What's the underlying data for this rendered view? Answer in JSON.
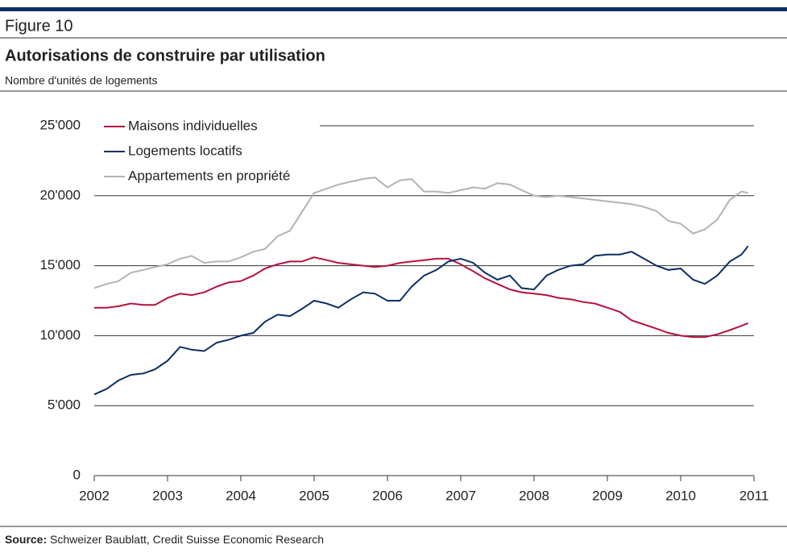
{
  "figure_label": "Figure 10",
  "source_label": "Source:",
  "source_text": "Schweizer Baublatt, Credit Suisse Economic Research",
  "chart_data": {
    "type": "line",
    "title": "Autorisations de construire par utilisation",
    "subtitle": "Nombre d'unités de logements",
    "x": [
      2002.0,
      2002.17,
      2002.33,
      2002.5,
      2002.67,
      2002.83,
      2003.0,
      2003.17,
      2003.33,
      2003.5,
      2003.67,
      2003.83,
      2004.0,
      2004.17,
      2004.33,
      2004.5,
      2004.67,
      2004.83,
      2005.0,
      2005.17,
      2005.33,
      2005.5,
      2005.67,
      2005.83,
      2006.0,
      2006.17,
      2006.33,
      2006.5,
      2006.67,
      2006.83,
      2007.0,
      2007.17,
      2007.33,
      2007.5,
      2007.67,
      2007.83,
      2008.0,
      2008.17,
      2008.33,
      2008.5,
      2008.67,
      2008.83,
      2009.0,
      2009.17,
      2009.33,
      2009.5,
      2009.67,
      2009.83,
      2010.0,
      2010.17,
      2010.33,
      2010.5,
      2010.67,
      2010.83,
      2010.92
    ],
    "series": [
      {
        "name": "Maisons individuelles",
        "color": "#b5123e",
        "values": [
          12000,
          12000,
          12100,
          12300,
          12200,
          12200,
          12700,
          13000,
          12900,
          13100,
          13500,
          13800,
          13900,
          14300,
          14800,
          15100,
          15300,
          15300,
          15600,
          15400,
          15200,
          15100,
          15000,
          14900,
          15000,
          15200,
          15300,
          15400,
          15500,
          15500,
          15100,
          14600,
          14100,
          13700,
          13300,
          13100,
          13000,
          12900,
          12700,
          12600,
          12400,
          12300,
          12000,
          11700,
          11100,
          10800,
          10500,
          10200,
          10000,
          9900,
          9900,
          10100,
          10400,
          10700,
          10900
        ]
      },
      {
        "name": "Logements locatifs",
        "color": "#0c2f63",
        "values": [
          5800,
          6200,
          6800,
          7200,
          7300,
          7600,
          8200,
          9200,
          9000,
          8900,
          9500,
          9700,
          10000,
          10200,
          11000,
          11500,
          11400,
          11900,
          12500,
          12300,
          12000,
          12600,
          13100,
          13000,
          12500,
          12500,
          13500,
          14300,
          14700,
          15300,
          15500,
          15200,
          14500,
          14000,
          14300,
          13400,
          13300,
          14300,
          14700,
          15000,
          15100,
          15700,
          15800,
          15800,
          16000,
          15500,
          15000,
          14700,
          14800,
          14000,
          13700,
          14300,
          15300,
          15800,
          16400
        ]
      },
      {
        "name": "Appartements en propriété",
        "color": "#b3b3b3",
        "values": [
          13400,
          13700,
          13900,
          14500,
          14700,
          14900,
          15100,
          15500,
          15700,
          15200,
          15300,
          15300,
          15600,
          16000,
          16200,
          17100,
          17500,
          18800,
          20200,
          20500,
          20800,
          21000,
          21200,
          21300,
          20600,
          21100,
          21200,
          20300,
          20300,
          20200,
          20400,
          20600,
          20500,
          20900,
          20800,
          20400,
          20000,
          19900,
          20000,
          19900,
          19800,
          19700,
          19600,
          19500,
          19400,
          19200,
          18900,
          18200,
          18000,
          17300,
          17600,
          18300,
          19700,
          20300,
          20200
        ]
      }
    ],
    "xlim": [
      2002,
      2011
    ],
    "xticks": [
      2002,
      2003,
      2004,
      2005,
      2006,
      2007,
      2008,
      2009,
      2010,
      2011
    ],
    "ylim": [
      0,
      25000
    ],
    "yticks": [
      0,
      {
        "value": 5000,
        "label": "5'000"
      },
      {
        "value": 10000,
        "label": "10'000"
      },
      {
        "value": 15000,
        "label": "15'000"
      },
      {
        "value": 20000,
        "label": "20'000"
      },
      {
        "value": 25000,
        "label": "25'000"
      }
    ],
    "grid": true,
    "legend": "top-left"
  }
}
